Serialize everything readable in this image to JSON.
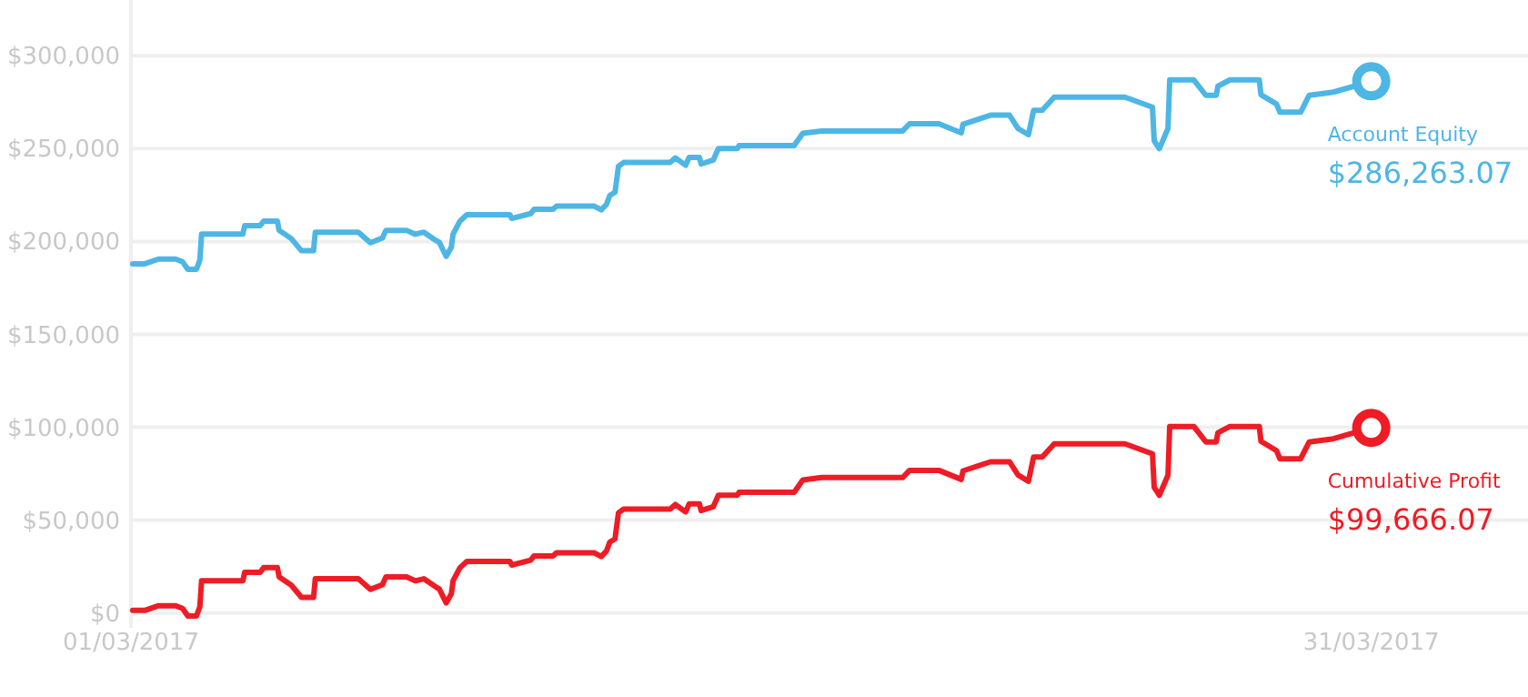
{
  "chart_data": {
    "type": "line",
    "x": [
      "2017-03-01T01:00",
      "2017-03-01T08:00",
      "2017-03-01T16:00",
      "2017-03-02T02:00",
      "2017-03-02T06:00",
      "2017-03-02T09:00",
      "2017-03-02T14:00",
      "2017-03-02T16:00",
      "2017-03-02T17:00",
      "2017-03-03T17:00",
      "2017-03-03T18:00",
      "2017-03-04T03:00",
      "2017-03-04T05:00",
      "2017-03-04T13:00",
      "2017-03-04T14:00",
      "2017-03-04T21:00",
      "2017-03-05T03:00",
      "2017-03-05T10:00",
      "2017-03-05T11:00",
      "2017-03-06T12:00",
      "2017-03-06T19:00",
      "2017-03-07T02:00",
      "2017-03-07T04:00",
      "2017-03-07T16:00",
      "2017-03-07T21:00",
      "2017-03-08T02:00",
      "2017-03-08T09:00",
      "2017-03-08T11:00",
      "2017-03-08T15:00",
      "2017-03-08T18:00",
      "2017-03-08T19:00",
      "2017-03-08T23:00",
      "2017-03-09T03:00",
      "2017-03-10T04:00",
      "2017-03-10T05:00",
      "2017-03-10T16:00",
      "2017-03-10T18:00",
      "2017-03-11T05:00",
      "2017-03-11T07:00",
      "2017-03-12T05:00",
      "2017-03-12T09:00",
      "2017-03-12T12:00",
      "2017-03-12T14:00",
      "2017-03-12T17:00",
      "2017-03-12T19:00",
      "2017-03-12T22:00",
      "2017-03-14T01:00",
      "2017-03-14T04:00",
      "2017-03-14T10:00",
      "2017-03-14T12:00",
      "2017-03-14T18:00",
      "2017-03-14T19:00",
      "2017-03-15T02:00",
      "2017-03-15T05:00",
      "2017-03-15T16:00",
      "2017-03-15T17:00",
      "2017-03-17T01:00",
      "2017-03-17T06:00",
      "2017-03-17T17:00",
      "2017-03-19T16:00",
      "2017-03-19T20:00",
      "2017-03-20T13:00",
      "2017-03-21T02:00",
      "2017-03-21T03:00",
      "2017-03-21T19:00",
      "2017-03-22T06:00",
      "2017-03-22T11:00",
      "2017-03-22T17:00",
      "2017-03-22T20:00",
      "2017-03-23T01:00",
      "2017-03-23T08:00",
      "2017-03-25T01:00",
      "2017-03-25T17:00",
      "2017-03-25T18:00",
      "2017-03-25T21:00",
      "2017-03-26T02:00",
      "2017-03-26T03:00",
      "2017-03-26T17:00",
      "2017-03-27T00:00",
      "2017-03-27T06:00",
      "2017-03-27T07:00",
      "2017-03-27T14:00",
      "2017-03-28T07:00",
      "2017-03-28T08:00",
      "2017-03-28T17:00",
      "2017-03-28T19:00",
      "2017-03-29T07:00",
      "2017-03-29T12:00",
      "2017-03-30T02:00",
      "2017-03-31T00:00"
    ],
    "series": [
      {
        "name": "Account Equity",
        "color": "#4db6e5",
        "values": [
          188000,
          188000,
          190500,
          190500,
          189000,
          185000,
          185000,
          190000,
          204000,
          204000,
          208500,
          208500,
          211000,
          211000,
          206000,
          201600,
          195000,
          195000,
          205000,
          205000,
          199300,
          201900,
          206000,
          206000,
          203900,
          205000,
          200600,
          199500,
          192000,
          197000,
          204000,
          211000,
          214400,
          214400,
          212400,
          215000,
          217300,
          217300,
          219000,
          219000,
          217000,
          219900,
          224800,
          226500,
          240500,
          242500,
          242500,
          245000,
          241000,
          245300,
          245300,
          241700,
          243800,
          250000,
          250000,
          251600,
          251600,
          258200,
          259500,
          259500,
          263400,
          263400,
          258500,
          263100,
          268000,
          268000,
          260800,
          257500,
          270600,
          270600,
          277700,
          277700,
          272300,
          254200,
          250000,
          260800,
          287000,
          287000,
          278700,
          278700,
          283600,
          287000,
          287000,
          279000,
          274000,
          269600,
          269600,
          278700,
          280400,
          286263.07
        ]
      },
      {
        "name": "Cumulative Profit",
        "color": "#ee1c25",
        "values": [
          1400,
          1400,
          3900,
          3900,
          2400,
          -1600,
          -1600,
          3400,
          17400,
          17400,
          21900,
          21900,
          24400,
          24400,
          19400,
          15000,
          8400,
          8400,
          18400,
          18400,
          12700,
          15300,
          19400,
          19400,
          17300,
          18400,
          14000,
          12900,
          5400,
          10400,
          17400,
          24400,
          27800,
          27800,
          25800,
          28400,
          30700,
          30700,
          32400,
          32400,
          30400,
          33300,
          38200,
          39900,
          53900,
          55900,
          55900,
          58400,
          54400,
          58700,
          58700,
          55100,
          57200,
          63400,
          63400,
          65000,
          65000,
          71600,
          72900,
          72900,
          76800,
          76800,
          71900,
          76500,
          81400,
          81400,
          74200,
          70900,
          84000,
          84000,
          91100,
          91100,
          85700,
          67600,
          63400,
          74200,
          100400,
          100400,
          92100,
          92100,
          97000,
          100400,
          100400,
          92400,
          87400,
          83000,
          83000,
          92100,
          93800,
          99666.07
        ]
      }
    ],
    "annotations": [
      {
        "text": "$286,263.07",
        "x": "2017-03-31T00:00",
        "y": 286263.07
      },
      {
        "text": "$99,666.07",
        "x": "2017-03-31T00:00",
        "y": 99666.07
      }
    ],
    "xlim": [
      "2017-03-01T00:00",
      "2017-04-03T19:00"
    ],
    "xticks": [
      {
        "value": "2017-03-01T00:00",
        "label": "01/03/2017"
      },
      {
        "value": "2017-03-31T00:00",
        "label": "31/03/2017"
      }
    ],
    "ylim": [
      -8000,
      330000
    ],
    "yticks": [
      {
        "value": 0,
        "label": "$0"
      },
      {
        "value": 50000,
        "label": "$50,000"
      },
      {
        "value": 100000,
        "label": "$100,000"
      },
      {
        "value": 150000,
        "label": "$150,000"
      },
      {
        "value": 200000,
        "label": "$200,000"
      },
      {
        "value": 250000,
        "label": "$250,000"
      },
      {
        "value": 300000,
        "label": "$300,000"
      }
    ],
    "grid": "y",
    "marker": "none",
    "line_style": "solid"
  }
}
